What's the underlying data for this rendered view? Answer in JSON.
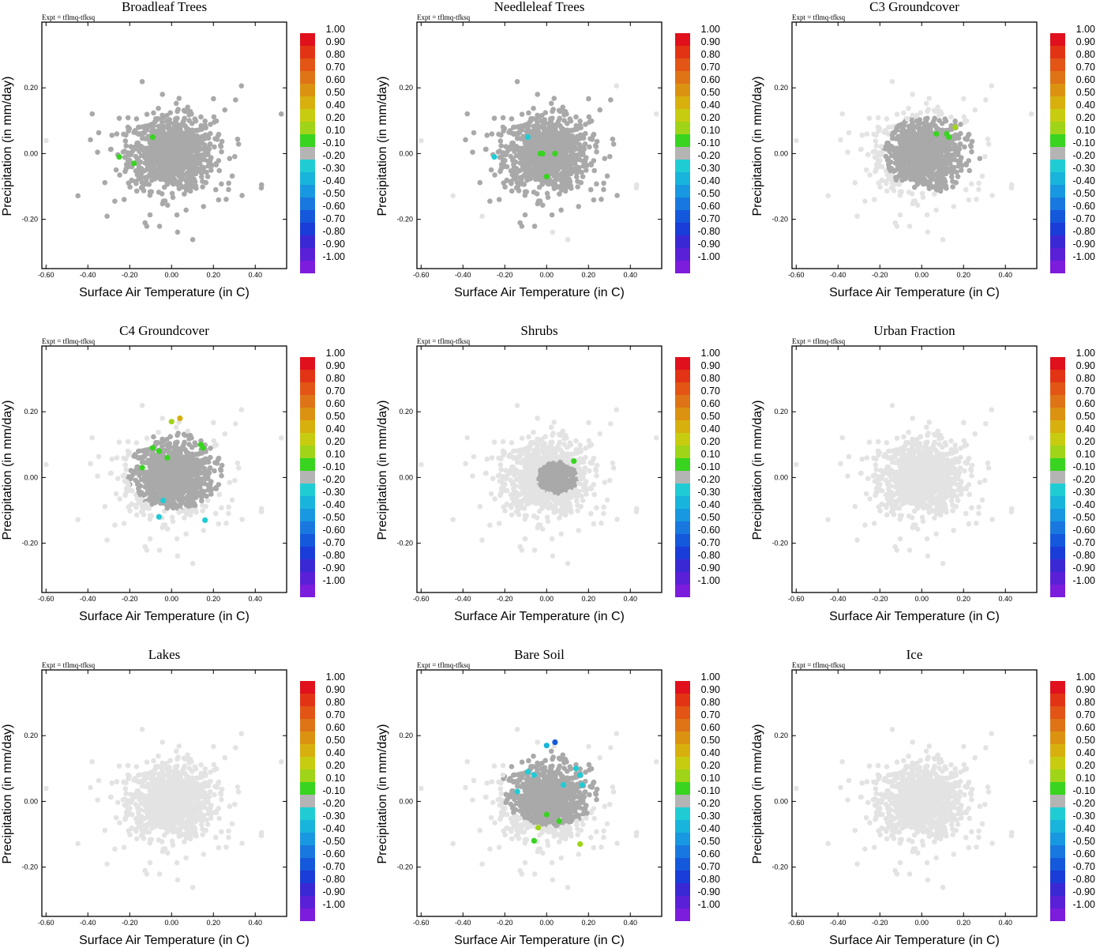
{
  "figure": {
    "experiment_label": "Expt = tflmq-tfksq",
    "panel_titles": [
      "Broadleaf Trees",
      "Needleleaf Trees",
      "C3 Groundcover",
      "C4 Groundcover",
      "Shrubs",
      "Urban Fraction",
      "Lakes",
      "Bare Soil",
      "Ice"
    ],
    "xlabel": "Surface Air Temperature (in C)",
    "ylabel": "Precipitation (in mm/day)",
    "xticks": [
      -0.6,
      -0.4,
      -0.2,
      0.0,
      0.2,
      0.4
    ],
    "xtick_labels": [
      "-0.60",
      "-0.40",
      "-0.20",
      "0.00",
      "0.20",
      "0.40"
    ],
    "yticks": [
      -0.2,
      0.0,
      0.2
    ],
    "ytick_labels": [
      "-0.20",
      "0.00",
      "0.20"
    ],
    "xlim": [
      -0.62,
      0.55
    ],
    "ylim": [
      -0.35,
      0.4
    ],
    "colorbar": {
      "labels": [
        "1.00",
        "0.90",
        "0.80",
        "0.70",
        "0.60",
        "0.50",
        "0.40",
        "0.20",
        "0.10",
        "-0.10",
        "-0.20",
        "-0.30",
        "-0.40",
        "-0.50",
        "-0.60",
        "-0.70",
        "-0.80",
        "-0.90",
        "-1.00"
      ],
      "colors": [
        "#e0101c",
        "#e23414",
        "#e25515",
        "#de7416",
        "#dc9211",
        "#d8b00e",
        "#c8cc10",
        "#a0d418",
        "#38d420",
        "#b4b4b4",
        "#20ccd4",
        "#18b4dc",
        "#1898e0",
        "#1878e0",
        "#1458dc",
        "#1a3cd8",
        "#3a28d4",
        "#5a20d8",
        "#7c1cdc"
      ]
    },
    "marker_colors": {
      "background": "#e3e3e3",
      "neutral": "#a9a9a9"
    }
  },
  "chart_data": [
    {
      "type": "scatter",
      "title": "Broadleaf Trees",
      "highlight": [
        {
          "x": -0.09,
          "y": 0.05,
          "color": "#38d420"
        },
        {
          "x": -0.25,
          "y": -0.01,
          "color": "#38d420"
        },
        {
          "x": -0.18,
          "y": -0.03,
          "color": "#38d420"
        }
      ],
      "neutral_region": {
        "cx": 0.02,
        "cy": 0.0,
        "coverage": "full"
      }
    },
    {
      "type": "scatter",
      "title": "Needleleaf Trees",
      "highlight": [
        {
          "x": -0.03,
          "y": 0.0,
          "color": "#38d420"
        },
        {
          "x": -0.02,
          "y": 0.0,
          "color": "#38d420"
        },
        {
          "x": 0.04,
          "y": 0.0,
          "color": "#38d420"
        },
        {
          "x": 0.0,
          "y": -0.07,
          "color": "#38d420"
        },
        {
          "x": -0.25,
          "y": -0.01,
          "color": "#20ccd4"
        },
        {
          "x": -0.09,
          "y": 0.05,
          "color": "#20ccd4"
        }
      ],
      "neutral_region": {
        "cx": 0.0,
        "cy": 0.0,
        "coverage": "most"
      }
    },
    {
      "type": "scatter",
      "title": "C3 Groundcover",
      "highlight": [
        {
          "x": 0.16,
          "y": 0.08,
          "color": "#a0d418"
        },
        {
          "x": 0.07,
          "y": 0.06,
          "color": "#38d420"
        },
        {
          "x": 0.13,
          "y": 0.05,
          "color": "#38d420"
        },
        {
          "x": 0.12,
          "y": 0.06,
          "color": "#38d420"
        }
      ],
      "neutral_region": {
        "cx": 0.05,
        "cy": 0.0,
        "coverage": "partial"
      }
    },
    {
      "type": "scatter",
      "title": "C4 Groundcover",
      "highlight": [
        {
          "x": 0.04,
          "y": 0.18,
          "color": "#d8b00e"
        },
        {
          "x": 0.0,
          "y": 0.17,
          "color": "#a0d418"
        },
        {
          "x": -0.09,
          "y": 0.09,
          "color": "#38d420"
        },
        {
          "x": -0.06,
          "y": 0.08,
          "color": "#38d420"
        },
        {
          "x": -0.02,
          "y": 0.06,
          "color": "#38d420"
        },
        {
          "x": -0.14,
          "y": 0.03,
          "color": "#38d420"
        },
        {
          "x": 0.14,
          "y": 0.1,
          "color": "#38d420"
        },
        {
          "x": 0.15,
          "y": 0.09,
          "color": "#38d420"
        },
        {
          "x": -0.04,
          "y": -0.07,
          "color": "#20ccd4"
        },
        {
          "x": -0.06,
          "y": -0.12,
          "color": "#20ccd4"
        },
        {
          "x": 0.16,
          "y": -0.13,
          "color": "#20ccd4"
        }
      ],
      "neutral_region": {
        "cx": 0.02,
        "cy": 0.02,
        "coverage": "partial"
      }
    },
    {
      "type": "scatter",
      "title": "Shrubs",
      "highlight": [
        {
          "x": 0.13,
          "y": 0.05,
          "color": "#38d420"
        }
      ],
      "neutral_region": {
        "cx": 0.05,
        "cy": 0.0,
        "coverage": "sparse"
      }
    },
    {
      "type": "scatter",
      "title": "Urban Fraction",
      "highlight": [],
      "neutral_region": {
        "cx": 0.0,
        "cy": 0.0,
        "coverage": "none"
      }
    },
    {
      "type": "scatter",
      "title": "Lakes",
      "highlight": [],
      "neutral_region": {
        "cx": 0.0,
        "cy": 0.0,
        "coverage": "none"
      }
    },
    {
      "type": "scatter",
      "title": "Bare Soil",
      "highlight": [
        {
          "x": 0.04,
          "y": 0.18,
          "color": "#1458dc"
        },
        {
          "x": 0.0,
          "y": 0.17,
          "color": "#18b4dc"
        },
        {
          "x": 0.14,
          "y": 0.1,
          "color": "#20ccd4"
        },
        {
          "x": 0.16,
          "y": 0.08,
          "color": "#20ccd4"
        },
        {
          "x": -0.09,
          "y": 0.09,
          "color": "#20ccd4"
        },
        {
          "x": -0.06,
          "y": 0.08,
          "color": "#20ccd4"
        },
        {
          "x": 0.08,
          "y": 0.05,
          "color": "#20ccd4"
        },
        {
          "x": 0.17,
          "y": 0.05,
          "color": "#20ccd4"
        },
        {
          "x": -0.14,
          "y": 0.03,
          "color": "#20ccd4"
        },
        {
          "x": 0.0,
          "y": -0.04,
          "color": "#38d420"
        },
        {
          "x": 0.06,
          "y": -0.06,
          "color": "#38d420"
        },
        {
          "x": -0.04,
          "y": -0.08,
          "color": "#a0d418"
        },
        {
          "x": -0.06,
          "y": -0.12,
          "color": "#38d420"
        },
        {
          "x": 0.16,
          "y": -0.13,
          "color": "#a0d418"
        }
      ],
      "neutral_region": {
        "cx": 0.02,
        "cy": 0.04,
        "coverage": "partial"
      }
    },
    {
      "type": "scatter",
      "title": "Ice",
      "highlight": [],
      "neutral_region": {
        "cx": 0.0,
        "cy": 0.0,
        "coverage": "none"
      }
    }
  ]
}
